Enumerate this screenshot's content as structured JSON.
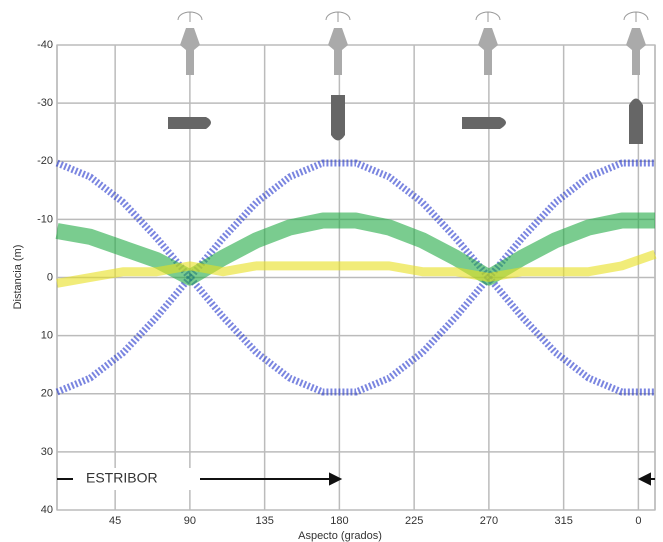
{
  "chart_data": {
    "type": "line",
    "x_label": "Aspecto (grados)",
    "y_label": "Distancia (m)",
    "annotation": "ESTRIBOR",
    "x": [
      10,
      30,
      50,
      70,
      90,
      110,
      130,
      150,
      170,
      190,
      210,
      230,
      250,
      270,
      290,
      310,
      330,
      350,
      370
    ],
    "series": [
      {
        "color": "#2233cc",
        "values": [
          19.7,
          17.3,
          12.9,
          6.8,
          0,
          -6.8,
          -12.9,
          -17.3,
          -19.7,
          -19.7,
          -17.3,
          -12.9,
          -6.8,
          0,
          6.8,
          12.9,
          17.3,
          19.7,
          19.7
        ]
      },
      {
        "color": "#2233cc",
        "values": [
          -19.7,
          -17.3,
          -12.9,
          -6.8,
          0,
          6.8,
          12.9,
          17.3,
          19.7,
          19.7,
          17.3,
          12.9,
          6.8,
          0,
          -6.8,
          -12.9,
          -17.3,
          -19.7,
          -19.7
        ]
      },
      {
        "color": "#22aa44",
        "values": [
          -8,
          -7,
          -5,
          -3,
          0,
          -3.4,
          -6.4,
          -8.6,
          -9.8,
          -9.8,
          -8.6,
          -6.4,
          -3.4,
          0,
          -3.4,
          -6.4,
          -8.6,
          -9.8,
          -9.8
        ]
      },
      {
        "color": "#e8e020",
        "values": [
          1,
          0,
          -1,
          -1,
          -2,
          -1,
          -2,
          -2,
          -2,
          -2,
          -2,
          -1,
          -1,
          0,
          -1,
          -1,
          -1,
          -2,
          -4
        ]
      }
    ],
    "xlim": [
      10,
      370
    ],
    "xticks": [
      45,
      90,
      135,
      180,
      225,
      270,
      315,
      {
        "value": 360,
        "label": "0"
      }
    ],
    "ylim": [
      -40,
      40
    ],
    "y_inverted": true,
    "yticks": [
      -40,
      -30,
      -20,
      -10,
      0,
      10,
      20,
      30,
      40
    ],
    "grid": true
  }
}
